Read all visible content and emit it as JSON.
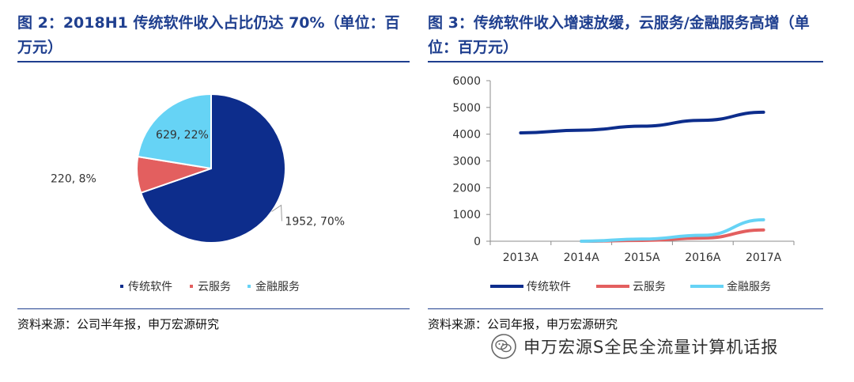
{
  "figure_left": {
    "title": "图 2：2018H1 传统软件收入占比仍达 70%（单位：百万元）",
    "source": "资料来源：公司半年报，申万宏源研究"
  },
  "figure_right": {
    "title": "图 3：传统软件收入增速放缓，云服务/金融服务高增（单位：百万元）",
    "source": "资料来源：公司年报，申万宏源研究"
  },
  "watermark": {
    "text": "申万宏源S全民全流量计算机话报",
    "icon": "wechat-icon"
  },
  "chart_data": [
    {
      "type": "pie",
      "labels": [
        "传统软件",
        "云服务",
        "金融服务"
      ],
      "values": [
        1952,
        220,
        629
      ],
      "percents": [
        70,
        8,
        22
      ],
      "data_labels": [
        "1952, 70%",
        "220, 8%",
        "629, 22%"
      ],
      "colors": [
        "#0d2d8c",
        "#e35f5f",
        "#66d3f5"
      ],
      "legend": "bottom"
    },
    {
      "type": "line",
      "categories": [
        "2013A",
        "2014A",
        "2015A",
        "2016A",
        "2017A"
      ],
      "series": [
        {
          "name": "传统软件",
          "values": [
            4050,
            4150,
            4300,
            4520,
            4820
          ],
          "color": "#0d2d8c"
        },
        {
          "name": "云服务",
          "values": [
            null,
            0,
            30,
            120,
            420
          ],
          "color": "#e35f5f"
        },
        {
          "name": "金融服务",
          "values": [
            null,
            0,
            80,
            220,
            800
          ],
          "color": "#66d3f5"
        }
      ],
      "yticks": [
        0,
        1000,
        2000,
        3000,
        4000,
        5000,
        6000
      ],
      "ylim": [
        0,
        6000
      ],
      "grid": false,
      "legend": "bottom"
    }
  ]
}
